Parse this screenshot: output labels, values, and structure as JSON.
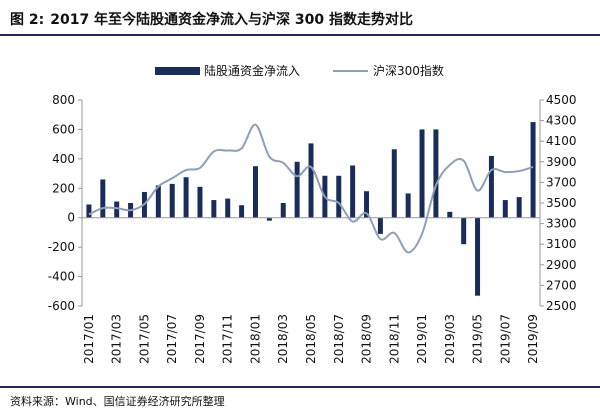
{
  "figure": {
    "label": "图 2:",
    "title": "2017 年至今陆股通资金净流入与沪深 300 指数走势对比"
  },
  "source_note": "资料来源：Wind、国信证券经济研究所整理",
  "colors": {
    "bar": "#1a2d5a",
    "line": "#8e9fb8",
    "axis": "#999999",
    "rule": "#1a2d5a"
  },
  "chart_data": {
    "type": "bar",
    "categories": [
      "2017/01",
      "2017/02",
      "2017/03",
      "2017/04",
      "2017/05",
      "2017/06",
      "2017/07",
      "2017/08",
      "2017/09",
      "2017/10",
      "2017/11",
      "2017/12",
      "2018/01",
      "2018/02",
      "2018/03",
      "2018/04",
      "2018/05",
      "2018/06",
      "2018/07",
      "2018/08",
      "2018/09",
      "2018/10",
      "2018/11",
      "2018/12",
      "2019/01",
      "2019/02",
      "2019/03",
      "2019/04",
      "2019/05",
      "2019/06",
      "2019/07",
      "2019/08",
      "2019/09"
    ],
    "x_tick_labels": [
      "2017/01",
      "2017/03",
      "2017/05",
      "2017/07",
      "2017/09",
      "2017/11",
      "2018/01",
      "2018/03",
      "2018/05",
      "2018/07",
      "2018/09",
      "2018/11",
      "2019/01",
      "2019/03",
      "2019/05",
      "2019/07",
      "2019/09"
    ],
    "series": [
      {
        "name": "陆股通资金净流入",
        "kind": "bar",
        "axis": "left",
        "values": [
          90,
          260,
          110,
          100,
          175,
          220,
          230,
          275,
          210,
          120,
          130,
          85,
          350,
          -20,
          100,
          380,
          505,
          285,
          285,
          355,
          180,
          -110,
          465,
          165,
          600,
          600,
          40,
          -180,
          -530,
          420,
          120,
          140,
          650
        ]
      },
      {
        "name": "沪深300指数",
        "kind": "line",
        "axis": "right",
        "values": [
          3390,
          3450,
          3450,
          3430,
          3490,
          3660,
          3740,
          3820,
          3840,
          4000,
          4010,
          4030,
          4260,
          3950,
          3890,
          3760,
          3850,
          3560,
          3500,
          3320,
          3400,
          3150,
          3210,
          3020,
          3200,
          3670,
          3870,
          3910,
          3620,
          3820,
          3800,
          3810,
          3850
        ]
      }
    ],
    "y_left": {
      "range": [
        -600,
        800
      ],
      "ticks": [
        -600,
        -400,
        -200,
        0,
        200,
        400,
        600,
        800
      ]
    },
    "y_right": {
      "range": [
        2500,
        4500
      ],
      "ticks": [
        2500,
        2700,
        2900,
        3100,
        3300,
        3500,
        3700,
        3900,
        4100,
        4300,
        4500
      ]
    },
    "legend_position": "top-center",
    "grid": false
  }
}
